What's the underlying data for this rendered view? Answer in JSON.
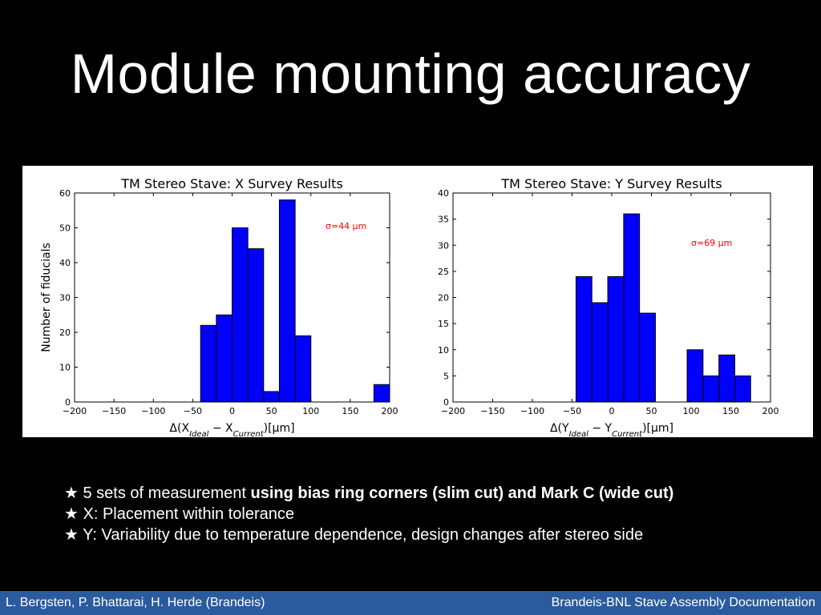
{
  "slide": {
    "title": "Module mounting accuracy"
  },
  "bullets": [
    {
      "marker": "★",
      "text": "5 sets of measurement ",
      "bold": "using bias ring corners (slim cut) and Mark C (wide cut)"
    },
    {
      "marker": "★",
      "text": "X: Placement within tolerance",
      "bold": ""
    },
    {
      "marker": "★",
      "text": "Y: Variability due to temperature dependence, design changes after stereo side",
      "bold": ""
    }
  ],
  "footer": {
    "left": "L. Bergsten, P. Bhattarai, H. Herde (Brandeis)",
    "right": "Brandeis-BNL Stave Assembly Documentation",
    "color": "#2a5b9e"
  },
  "chart_data": [
    {
      "type": "bar",
      "title": "TM Stereo Stave: X Survey Results",
      "xlabel": "Δ(X_Ideal − X_Current)[μm]",
      "ylabel": "Number of fiducials",
      "annotation": "σ=44 μm",
      "annotation_color": "#ff0000",
      "bar_color": "#0000ff",
      "xlim": [
        -200,
        200
      ],
      "ylim": [
        0,
        60
      ],
      "xticks": [
        -200,
        -150,
        -100,
        -50,
        0,
        50,
        100,
        150,
        200
      ],
      "yticks": [
        0,
        10,
        20,
        30,
        40,
        50,
        60
      ],
      "bin_width": 20,
      "bins": [
        {
          "left": -40,
          "value": 22
        },
        {
          "left": -20,
          "value": 25
        },
        {
          "left": 0,
          "value": 50
        },
        {
          "left": 20,
          "value": 44
        },
        {
          "left": 40,
          "value": 3
        },
        {
          "left": 60,
          "value": 58
        },
        {
          "left": 80,
          "value": 19
        },
        {
          "left": 100,
          "value": 0
        },
        {
          "left": 120,
          "value": 0
        },
        {
          "left": 140,
          "value": 0
        },
        {
          "left": 160,
          "value": 0
        },
        {
          "left": 180,
          "value": 5
        }
      ],
      "grid": false
    },
    {
      "type": "bar",
      "title": "TM Stereo Stave: Y Survey Results",
      "xlabel": "Δ(Y_Ideal − Y_Current)[μm]",
      "ylabel": "Number of fiducials",
      "annotation": "σ=69 μm",
      "annotation_color": "#ff0000",
      "bar_color": "#0000ff",
      "xlim": [
        -200,
        200
      ],
      "ylim": [
        0,
        40
      ],
      "xticks": [
        -200,
        -150,
        -100,
        -50,
        0,
        50,
        100,
        150,
        200
      ],
      "yticks": [
        0,
        5,
        10,
        15,
        20,
        25,
        30,
        35,
        40
      ],
      "bin_width": 20,
      "bins": [
        {
          "left": -45,
          "value": 24
        },
        {
          "left": -25,
          "value": 19
        },
        {
          "left": -5,
          "value": 24
        },
        {
          "left": 15,
          "value": 36
        },
        {
          "left": 35,
          "value": 17
        },
        {
          "left": 55,
          "value": 0
        },
        {
          "left": 75,
          "value": 0
        },
        {
          "left": 95,
          "value": 10
        },
        {
          "left": 115,
          "value": 5
        },
        {
          "left": 135,
          "value": 9
        },
        {
          "left": 155,
          "value": 5
        }
      ],
      "grid": false
    }
  ]
}
